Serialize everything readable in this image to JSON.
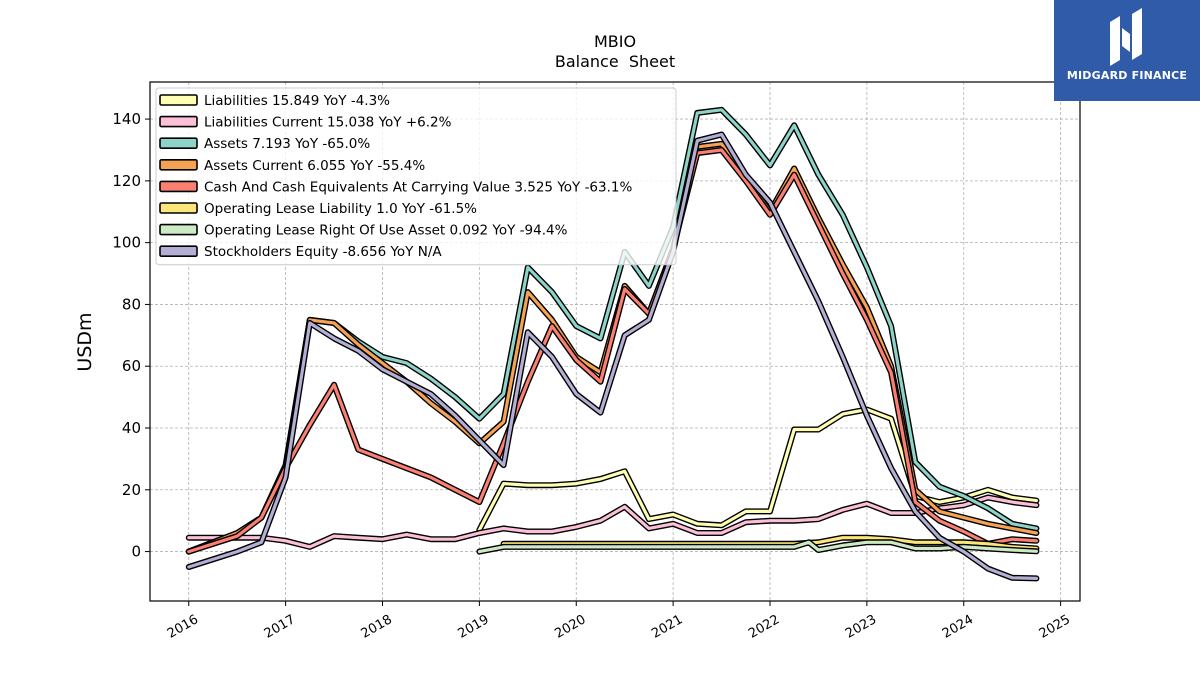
{
  "chart_data": {
    "type": "line",
    "title": "MBIO",
    "subtitle": "Balance  Sheet",
    "ylabel": "USDm",
    "xlabel": "",
    "xlim": [
      2015.6,
      2025.2
    ],
    "ylim": [
      -16,
      152
    ],
    "xticks": [
      2016,
      2017,
      2018,
      2019,
      2020,
      2021,
      2022,
      2023,
      2024,
      2025
    ],
    "xtick_labels": [
      "2016",
      "2017",
      "2018",
      "2019",
      "2020",
      "2021",
      "2022",
      "2023",
      "2024",
      "2025"
    ],
    "yticks": [
      0,
      20,
      40,
      60,
      80,
      100,
      120,
      140
    ],
    "ytick_labels": [
      "0",
      "20",
      "40",
      "60",
      "80",
      "100",
      "120",
      "140"
    ],
    "grid": true,
    "legend_position": "top-left",
    "series": [
      {
        "name": "Liabilities  15.849 YoY -4.3%",
        "color": "#ffffb3",
        "points": [
          [
            2019.0,
            7
          ],
          [
            2019.25,
            22
          ],
          [
            2019.5,
            21.5
          ],
          [
            2019.75,
            21.5
          ],
          [
            2020.0,
            22
          ],
          [
            2020.25,
            23.5
          ],
          [
            2020.5,
            26
          ],
          [
            2020.75,
            10.5
          ],
          [
            2021.0,
            12
          ],
          [
            2021.25,
            9
          ],
          [
            2021.5,
            8.5
          ],
          [
            2021.75,
            13
          ],
          [
            2022.0,
            13
          ],
          [
            2022.25,
            39.5
          ],
          [
            2022.5,
            39.5
          ],
          [
            2022.75,
            44.5
          ],
          [
            2023.0,
            46
          ],
          [
            2023.25,
            43
          ],
          [
            2023.5,
            18
          ],
          [
            2023.75,
            16
          ],
          [
            2024.0,
            17.5
          ],
          [
            2024.25,
            20
          ],
          [
            2024.5,
            17.5
          ],
          [
            2024.75,
            16.5
          ]
        ]
      },
      {
        "name": "Liabilities Current  15.038 YoY +6.2%",
        "color": "#fbc0d8",
        "points": [
          [
            2016.0,
            4.5
          ],
          [
            2016.5,
            4.5
          ],
          [
            2016.75,
            4.5
          ],
          [
            2017.0,
            3.5
          ],
          [
            2017.25,
            1.5
          ],
          [
            2017.5,
            5
          ],
          [
            2017.75,
            4.5
          ],
          [
            2018.0,
            4
          ],
          [
            2018.25,
            5.5
          ],
          [
            2018.5,
            4
          ],
          [
            2018.75,
            4
          ],
          [
            2019.0,
            6
          ],
          [
            2019.25,
            7.5
          ],
          [
            2019.5,
            6.5
          ],
          [
            2019.75,
            6.5
          ],
          [
            2020.0,
            8
          ],
          [
            2020.25,
            10
          ],
          [
            2020.5,
            14.5
          ],
          [
            2020.75,
            7.5
          ],
          [
            2021.0,
            9
          ],
          [
            2021.25,
            6
          ],
          [
            2021.5,
            6
          ],
          [
            2021.75,
            9.5
          ],
          [
            2022.0,
            10
          ],
          [
            2022.25,
            10
          ],
          [
            2022.5,
            10.5
          ],
          [
            2022.75,
            13.5
          ],
          [
            2023.0,
            15.5
          ],
          [
            2023.25,
            12.5
          ],
          [
            2023.5,
            12.5
          ],
          [
            2023.75,
            14
          ],
          [
            2024.0,
            15
          ],
          [
            2024.25,
            17.5
          ],
          [
            2024.5,
            16
          ],
          [
            2024.75,
            15
          ]
        ]
      },
      {
        "name": "Assets  7.193 YoY -65.0%",
        "color": "#8dd3c7",
        "points": [
          [
            2016.0,
            0
          ],
          [
            2016.5,
            6
          ],
          [
            2016.75,
            11
          ],
          [
            2017.0,
            28
          ],
          [
            2017.25,
            75
          ],
          [
            2017.5,
            74
          ],
          [
            2017.75,
            68
          ],
          [
            2018.0,
            63
          ],
          [
            2018.25,
            61
          ],
          [
            2018.5,
            56
          ],
          [
            2018.75,
            50
          ],
          [
            2019.0,
            43
          ],
          [
            2019.25,
            51
          ],
          [
            2019.5,
            92
          ],
          [
            2019.75,
            84
          ],
          [
            2020.0,
            73
          ],
          [
            2020.25,
            69
          ],
          [
            2020.5,
            97
          ],
          [
            2020.75,
            86
          ],
          [
            2021.0,
            105
          ],
          [
            2021.25,
            142
          ],
          [
            2021.5,
            143
          ],
          [
            2021.75,
            135
          ],
          [
            2022.0,
            125
          ],
          [
            2022.25,
            138
          ],
          [
            2022.5,
            122
          ],
          [
            2022.75,
            109
          ],
          [
            2023.0,
            92
          ],
          [
            2023.25,
            73
          ],
          [
            2023.5,
            29
          ],
          [
            2023.75,
            21
          ],
          [
            2024.0,
            18
          ],
          [
            2024.25,
            14
          ],
          [
            2024.5,
            9
          ],
          [
            2024.75,
            7.5
          ]
        ]
      },
      {
        "name": "Assets Current  6.055 YoY -55.4%",
        "color": "#f5a255",
        "points": [
          [
            2016.0,
            0
          ],
          [
            2016.5,
            6
          ],
          [
            2016.75,
            11
          ],
          [
            2017.0,
            27
          ],
          [
            2017.25,
            75
          ],
          [
            2017.5,
            74
          ],
          [
            2017.75,
            67
          ],
          [
            2018.0,
            61
          ],
          [
            2018.25,
            55
          ],
          [
            2018.5,
            48
          ],
          [
            2018.75,
            42
          ],
          [
            2019.0,
            35
          ],
          [
            2019.25,
            42
          ],
          [
            2019.5,
            84
          ],
          [
            2019.75,
            75
          ],
          [
            2020.0,
            63
          ],
          [
            2020.25,
            58
          ],
          [
            2020.5,
            86
          ],
          [
            2020.75,
            77
          ],
          [
            2021.0,
            98
          ],
          [
            2021.25,
            131
          ],
          [
            2021.5,
            132
          ],
          [
            2021.75,
            121
          ],
          [
            2022.0,
            110
          ],
          [
            2022.25,
            124
          ],
          [
            2022.5,
            108
          ],
          [
            2022.75,
            93
          ],
          [
            2023.0,
            79
          ],
          [
            2023.25,
            60
          ],
          [
            2023.5,
            20
          ],
          [
            2023.75,
            13
          ],
          [
            2024.0,
            11
          ],
          [
            2024.25,
            9
          ],
          [
            2024.5,
            7.5
          ],
          [
            2024.75,
            6
          ]
        ]
      },
      {
        "name": "Cash And Cash Equivalents At Carrying Value  3.525 YoY -63.1%",
        "color": "#fb8072",
        "points": [
          [
            2016.0,
            0
          ],
          [
            2016.5,
            5
          ],
          [
            2016.75,
            11
          ],
          [
            2017.0,
            27
          ],
          [
            2017.25,
            41
          ],
          [
            2017.5,
            54
          ],
          [
            2017.75,
            33
          ],
          [
            2018.0,
            30
          ],
          [
            2018.25,
            27
          ],
          [
            2018.5,
            24
          ],
          [
            2018.75,
            20
          ],
          [
            2019.0,
            16
          ],
          [
            2019.25,
            35
          ],
          [
            2019.5,
            55
          ],
          [
            2019.75,
            73
          ],
          [
            2020.0,
            62
          ],
          [
            2020.25,
            55
          ],
          [
            2020.5,
            85
          ],
          [
            2020.75,
            77
          ],
          [
            2021.0,
            98
          ],
          [
            2021.25,
            129
          ],
          [
            2021.5,
            130
          ],
          [
            2021.75,
            120
          ],
          [
            2022.0,
            109
          ],
          [
            2022.25,
            122
          ],
          [
            2022.5,
            106
          ],
          [
            2022.75,
            90
          ],
          [
            2023.0,
            75
          ],
          [
            2023.25,
            58
          ],
          [
            2023.5,
            16
          ],
          [
            2023.75,
            10
          ],
          [
            2024.0,
            6.5
          ],
          [
            2024.25,
            2.5
          ],
          [
            2024.5,
            4
          ],
          [
            2024.75,
            3.5
          ]
        ]
      },
      {
        "name": "Operating Lease Liability  1.0 YoY -61.5%",
        "color": "#fce57a",
        "points": [
          [
            2019.25,
            2.5
          ],
          [
            2019.5,
            2.5
          ],
          [
            2020.0,
            2.5
          ],
          [
            2020.5,
            2.5
          ],
          [
            2021.0,
            2.5
          ],
          [
            2021.5,
            2.5
          ],
          [
            2022.0,
            2.5
          ],
          [
            2022.25,
            2.5
          ],
          [
            2022.5,
            3
          ],
          [
            2022.75,
            4.5
          ],
          [
            2023.0,
            4.5
          ],
          [
            2023.25,
            4
          ],
          [
            2023.5,
            3
          ],
          [
            2023.75,
            3
          ],
          [
            2024.0,
            3
          ],
          [
            2024.25,
            2.5
          ],
          [
            2024.5,
            1.5
          ],
          [
            2024.75,
            1
          ]
        ]
      },
      {
        "name": "Operating Lease Right Of Use Asset  0.092 YoY -94.4%",
        "color": "#ccebc5",
        "points": [
          [
            2019.0,
            0
          ],
          [
            2019.25,
            1.5
          ],
          [
            2019.5,
            1.5
          ],
          [
            2020.0,
            1.5
          ],
          [
            2020.5,
            1.5
          ],
          [
            2021.0,
            1.5
          ],
          [
            2021.5,
            1.5
          ],
          [
            2022.0,
            1.5
          ],
          [
            2022.25,
            1.5
          ],
          [
            2022.4,
            3
          ],
          [
            2022.5,
            0.5
          ],
          [
            2022.75,
            2
          ],
          [
            2023.0,
            3
          ],
          [
            2023.25,
            3
          ],
          [
            2023.5,
            1
          ],
          [
            2023.75,
            1
          ],
          [
            2024.0,
            1.5
          ],
          [
            2024.25,
            1
          ],
          [
            2024.5,
            0.5
          ],
          [
            2024.75,
            0.1
          ]
        ]
      },
      {
        "name": "Stockholders Equity  -8.656 YoY N/A",
        "color": "#b3aed4",
        "points": [
          [
            2016.0,
            -5
          ],
          [
            2016.5,
            0
          ],
          [
            2016.75,
            3
          ],
          [
            2017.0,
            24
          ],
          [
            2017.25,
            74
          ],
          [
            2017.5,
            69
          ],
          [
            2017.75,
            65
          ],
          [
            2018.0,
            59
          ],
          [
            2018.25,
            55
          ],
          [
            2018.5,
            51
          ],
          [
            2018.75,
            44
          ],
          [
            2019.0,
            36
          ],
          [
            2019.25,
            28
          ],
          [
            2019.5,
            71
          ],
          [
            2019.75,
            63
          ],
          [
            2020.0,
            51
          ],
          [
            2020.25,
            45
          ],
          [
            2020.5,
            70
          ],
          [
            2020.75,
            75
          ],
          [
            2021.0,
            97
          ],
          [
            2021.25,
            133
          ],
          [
            2021.5,
            135
          ],
          [
            2021.75,
            122
          ],
          [
            2022.0,
            113
          ],
          [
            2022.25,
            97
          ],
          [
            2022.5,
            81
          ],
          [
            2022.75,
            63
          ],
          [
            2023.0,
            44
          ],
          [
            2023.25,
            27
          ],
          [
            2023.5,
            13
          ],
          [
            2023.75,
            4.5
          ],
          [
            2024.0,
            0
          ],
          [
            2024.25,
            -5.5
          ],
          [
            2024.5,
            -8.5
          ],
          [
            2024.75,
            -8.7
          ]
        ]
      }
    ]
  },
  "logo": {
    "text": "MIDGARD FINANCE"
  }
}
